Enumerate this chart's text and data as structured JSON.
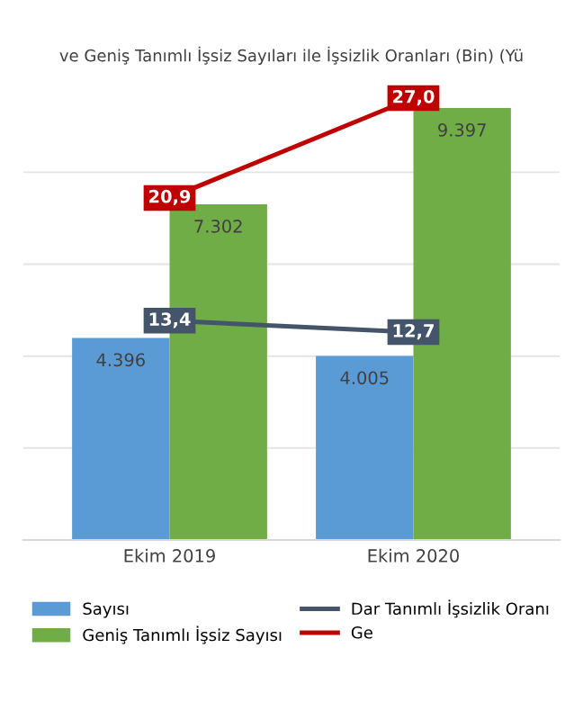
{
  "chart_data": {
    "type": "bar",
    "title": "ve Geniş Tanımlı İşsiz Sayıları ile İşsizlik Oranları (Bin) (Yü",
    "categories": [
      "Ekim 2019",
      "Ekim 2020"
    ],
    "series": [
      {
        "name": "Sayısı",
        "color": "#5b9bd5",
        "values": [
          4396,
          4005
        ],
        "value_labels": [
          "4.396",
          "4.005"
        ]
      },
      {
        "name": "Geniş Tanımlı İşsiz Sayısı",
        "color": "#70ad47",
        "values": [
          7302,
          9397
        ],
        "value_labels": [
          "7.302",
          "9.397"
        ]
      },
      {
        "name": "Dar Tanımlı İşsizlik Oranı",
        "type": "line",
        "axis": "y2",
        "color": "#44546a",
        "values": [
          13.4,
          12.7
        ],
        "value_labels": [
          "13,4",
          "12,7"
        ]
      },
      {
        "name": "Ge",
        "type": "line",
        "axis": "y2",
        "color": "#c00000",
        "values": [
          20.9,
          27.0
        ],
        "value_labels": [
          "20,9",
          "27,0"
        ]
      }
    ],
    "grid": "y",
    "legend": "bottom",
    "tick_labels": "x",
    "marker": "square",
    "line_style": "solid"
  }
}
